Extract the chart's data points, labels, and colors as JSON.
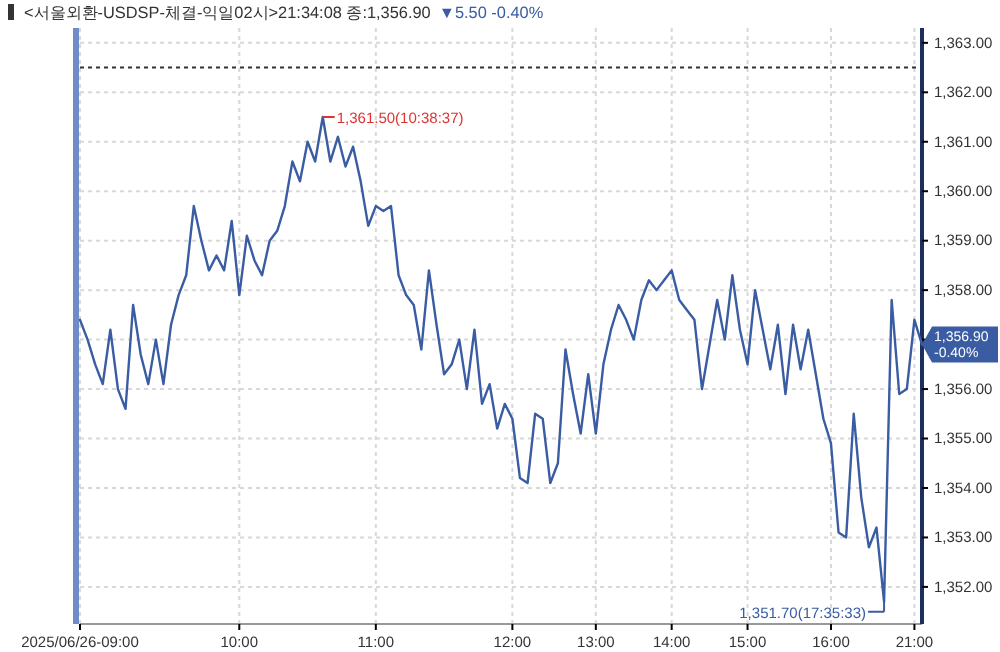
{
  "chart_data": {
    "type": "line",
    "title": "<서울외환-USDSP-체결-익일02시>21:34:08 종:1,356.90",
    "subtitle": "▼5.50 -0.40%",
    "categories": [
      "2025/06/26-09:00",
      null,
      null,
      null,
      null,
      null,
      null,
      null,
      null,
      null,
      null,
      null,
      null,
      null,
      null,
      null,
      null,
      null,
      null,
      null,
      null,
      "10:00",
      null,
      null,
      null,
      null,
      null,
      null,
      null,
      null,
      null,
      null,
      null,
      null,
      null,
      null,
      null,
      null,
      null,
      "11:00",
      null,
      null,
      null,
      null,
      null,
      null,
      null,
      null,
      null,
      null,
      null,
      null,
      null,
      null,
      null,
      null,
      null,
      "12:00",
      null,
      null,
      null,
      null,
      null,
      null,
      null,
      null,
      null,
      null,
      "13:00",
      null,
      null,
      null,
      null,
      null,
      null,
      null,
      null,
      null,
      "14:00",
      null,
      null,
      null,
      null,
      null,
      null,
      null,
      null,
      null,
      "15:00",
      null,
      null,
      null,
      null,
      null,
      null,
      null,
      null,
      null,
      null,
      "16:00",
      null,
      null,
      null,
      null,
      null,
      null,
      null,
      null,
      null,
      null,
      "21:00",
      null
    ],
    "ylim": [
      1351.25,
      1363.3
    ],
    "yticks": [
      {
        "value": 1352,
        "label": "1,352.00"
      },
      {
        "value": 1353,
        "label": "1,353.00"
      },
      {
        "value": 1354,
        "label": "1,354.00"
      },
      {
        "value": 1355,
        "label": "1,355.00"
      },
      {
        "value": 1356,
        "label": "1,356.00"
      },
      {
        "value": 1357,
        "label": null
      },
      {
        "value": 1358,
        "label": "1,358.00"
      },
      {
        "value": 1359,
        "label": "1,359.00"
      },
      {
        "value": 1360,
        "label": "1,360.00"
      },
      {
        "value": 1361,
        "label": "1,361.00"
      },
      {
        "value": 1362,
        "label": "1,362.00"
      },
      {
        "value": 1363,
        "label": "1,363.00"
      }
    ],
    "grid": true,
    "legend": false,
    "marker": "none",
    "line_style": "solid",
    "ref_lines": [
      {
        "axis": "y",
        "value": 1362.5,
        "color": "#333333",
        "line_style": "dotted"
      }
    ],
    "annotations": [
      "1,361.50(10:38:37)",
      "1,351.70(17:35:33)",
      "1,356.90 -0.40%"
    ],
    "series": [
      {
        "color": "#3a5ca3",
        "values": [
          1357.4,
          1357.0,
          1356.5,
          1356.1,
          1357.2,
          1356.0,
          1355.6,
          1357.7,
          1356.7,
          1356.1,
          1357.0,
          1356.1,
          1357.3,
          1357.9,
          1358.3,
          1359.7,
          1359.0,
          1358.4,
          1358.7,
          1358.4,
          1359.4,
          1357.9,
          1359.1,
          1358.6,
          1358.3,
          1359.0,
          1359.2,
          1359.7,
          1360.6,
          1360.2,
          1361.0,
          1360.6,
          1361.5,
          1360.6,
          1361.1,
          1360.5,
          1360.9,
          1360.2,
          1359.3,
          1359.7,
          1359.6,
          1359.7,
          1358.3,
          1357.9,
          1357.7,
          1356.8,
          1358.4,
          1357.3,
          1356.3,
          1356.5,
          1357.0,
          1356.0,
          1357.2,
          1355.7,
          1356.1,
          1355.2,
          1355.7,
          1355.4,
          1354.2,
          1354.1,
          1355.5,
          1355.4,
          1354.1,
          1354.5,
          1356.8,
          1355.9,
          1355.1,
          1356.3,
          1355.1,
          1356.5,
          1357.2,
          1357.7,
          1357.4,
          1357.0,
          1357.8,
          1358.2,
          1358.0,
          1358.2,
          1358.4,
          1357.8,
          1357.6,
          1357.4,
          1356.0,
          1356.9,
          1357.8,
          1357.0,
          1358.3,
          1357.2,
          1356.5,
          1358.0,
          1357.2,
          1356.4,
          1357.3,
          1355.9,
          1357.3,
          1356.4,
          1357.2,
          1356.3,
          1355.4,
          1354.9,
          1353.1,
          1353.0,
          1355.5,
          1353.8,
          1352.8,
          1353.2,
          1351.7,
          1357.8,
          1355.9,
          1356.0,
          1357.4,
          1356.9
        ]
      }
    ]
  }
}
